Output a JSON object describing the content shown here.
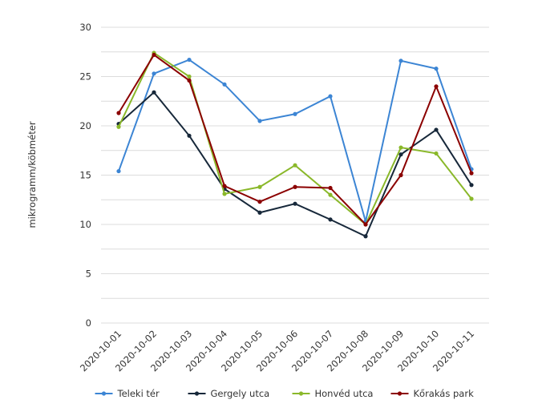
{
  "chart_data": {
    "type": "line",
    "y_label": "mikrogramm/köbméter",
    "categories": [
      "2020-10-01",
      "2020-10-02",
      "2020-10-03",
      "2020-10-04",
      "2020-10-05",
      "2020-10-06",
      "2020-10-07",
      "2020-10-08",
      "2020-10-09",
      "2020-10-10",
      "2020-10-11"
    ],
    "series": [
      {
        "name": "Teleki tér",
        "color": "#3c85d4",
        "values": [
          15.4,
          25.3,
          26.7,
          24.2,
          20.5,
          21.2,
          23.0,
          10.3,
          26.6,
          25.8,
          15.6
        ]
      },
      {
        "name": "Gergely utca",
        "color": "#17283a",
        "values": [
          20.2,
          23.4,
          19.0,
          13.6,
          11.2,
          12.1,
          10.5,
          8.8,
          17.1,
          19.6,
          14.0
        ]
      },
      {
        "name": "Honvéd utca",
        "color": "#8ab82a",
        "values": [
          19.9,
          27.4,
          25.0,
          13.1,
          13.8,
          16.0,
          13.0,
          10.0,
          17.8,
          17.2,
          12.6
        ]
      },
      {
        "name": "Kőrakás park",
        "color": "#8b0000",
        "values": [
          21.3,
          27.2,
          24.6,
          13.9,
          12.3,
          13.8,
          13.7,
          10.0,
          15.0,
          24.0,
          15.2
        ]
      }
    ],
    "ylim": [
      0,
      30
    ],
    "yticks": [
      0,
      5,
      10,
      15,
      20,
      25,
      30
    ],
    "y_minor_ticks": [
      2.5,
      7.5,
      12.5,
      17.5,
      22.5,
      27.5
    ],
    "grid": true,
    "legend": "bottom"
  }
}
